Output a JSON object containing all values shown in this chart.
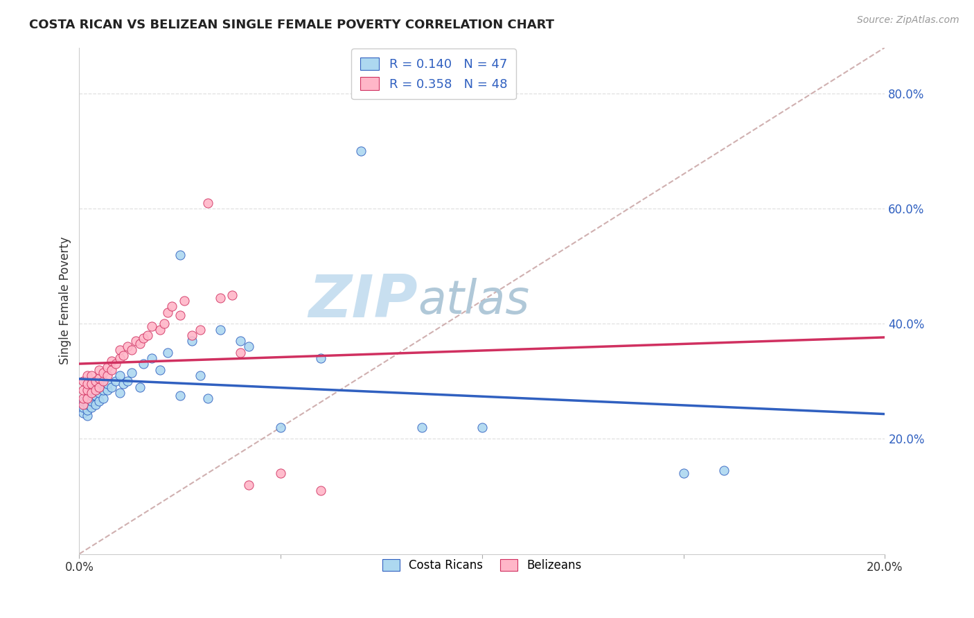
{
  "title": "COSTA RICAN VS BELIZEAN SINGLE FEMALE POVERTY CORRELATION CHART",
  "source": "Source: ZipAtlas.com",
  "ylabel": "Single Female Poverty",
  "xlabel": "",
  "xlim": [
    0.0,
    0.2
  ],
  "ylim": [
    0.0,
    0.88
  ],
  "yticks": [
    0.2,
    0.4,
    0.6,
    0.8
  ],
  "ytick_labels": [
    "20.0%",
    "40.0%",
    "60.0%",
    "80.0%"
  ],
  "xticks": [
    0.0,
    0.05,
    0.1,
    0.15,
    0.2
  ],
  "xtick_labels": [
    "0.0%",
    "",
    "",
    "",
    "20.0%"
  ],
  "legend_r1": "R = 0.140   N = 47",
  "legend_r2": "R = 0.358   N = 48",
  "legend_color1": "#add8f0",
  "legend_color2": "#ffb6c8",
  "scatter_color1": "#add8f0",
  "scatter_color2": "#ffb6c8",
  "line_color1": "#3060c0",
  "line_color2": "#d03060",
  "diag_color": "#d0b0b0",
  "watermark_zip": "ZIP",
  "watermark_atlas": "atlas",
  "watermark_color_zip": "#c8dff0",
  "watermark_color_atlas": "#b0c8d8",
  "background_color": "#ffffff",
  "grid_color": "#e0e0e0",
  "costa_rican_x": [
    0.001,
    0.001,
    0.001,
    0.002,
    0.002,
    0.002,
    0.002,
    0.003,
    0.003,
    0.003,
    0.003,
    0.004,
    0.004,
    0.005,
    0.005,
    0.005,
    0.006,
    0.006,
    0.007,
    0.007,
    0.008,
    0.009,
    0.01,
    0.01,
    0.011,
    0.012,
    0.013,
    0.015,
    0.016,
    0.018,
    0.02,
    0.022,
    0.025,
    0.025,
    0.028,
    0.03,
    0.032,
    0.035,
    0.04,
    0.042,
    0.05,
    0.06,
    0.07,
    0.085,
    0.1,
    0.15,
    0.16
  ],
  "costa_rican_y": [
    0.245,
    0.255,
    0.265,
    0.24,
    0.25,
    0.26,
    0.27,
    0.255,
    0.265,
    0.275,
    0.285,
    0.26,
    0.275,
    0.265,
    0.28,
    0.29,
    0.27,
    0.285,
    0.285,
    0.295,
    0.29,
    0.3,
    0.28,
    0.31,
    0.295,
    0.3,
    0.315,
    0.29,
    0.33,
    0.34,
    0.32,
    0.35,
    0.275,
    0.52,
    0.37,
    0.31,
    0.27,
    0.39,
    0.37,
    0.36,
    0.22,
    0.34,
    0.7,
    0.22,
    0.22,
    0.14,
    0.145
  ],
  "belizean_x": [
    0.001,
    0.001,
    0.001,
    0.001,
    0.002,
    0.002,
    0.002,
    0.002,
    0.003,
    0.003,
    0.003,
    0.004,
    0.004,
    0.005,
    0.005,
    0.005,
    0.006,
    0.006,
    0.007,
    0.007,
    0.008,
    0.008,
    0.009,
    0.01,
    0.01,
    0.011,
    0.012,
    0.013,
    0.014,
    0.015,
    0.016,
    0.017,
    0.018,
    0.02,
    0.021,
    0.022,
    0.023,
    0.025,
    0.026,
    0.028,
    0.03,
    0.032,
    0.035,
    0.038,
    0.04,
    0.042,
    0.05,
    0.06
  ],
  "belizean_y": [
    0.26,
    0.27,
    0.285,
    0.3,
    0.27,
    0.285,
    0.295,
    0.31,
    0.28,
    0.295,
    0.31,
    0.285,
    0.3,
    0.29,
    0.305,
    0.32,
    0.3,
    0.315,
    0.31,
    0.325,
    0.32,
    0.335,
    0.33,
    0.34,
    0.355,
    0.345,
    0.36,
    0.355,
    0.37,
    0.365,
    0.375,
    0.38,
    0.395,
    0.39,
    0.4,
    0.42,
    0.43,
    0.415,
    0.44,
    0.38,
    0.39,
    0.61,
    0.445,
    0.45,
    0.35,
    0.12,
    0.14,
    0.11
  ]
}
